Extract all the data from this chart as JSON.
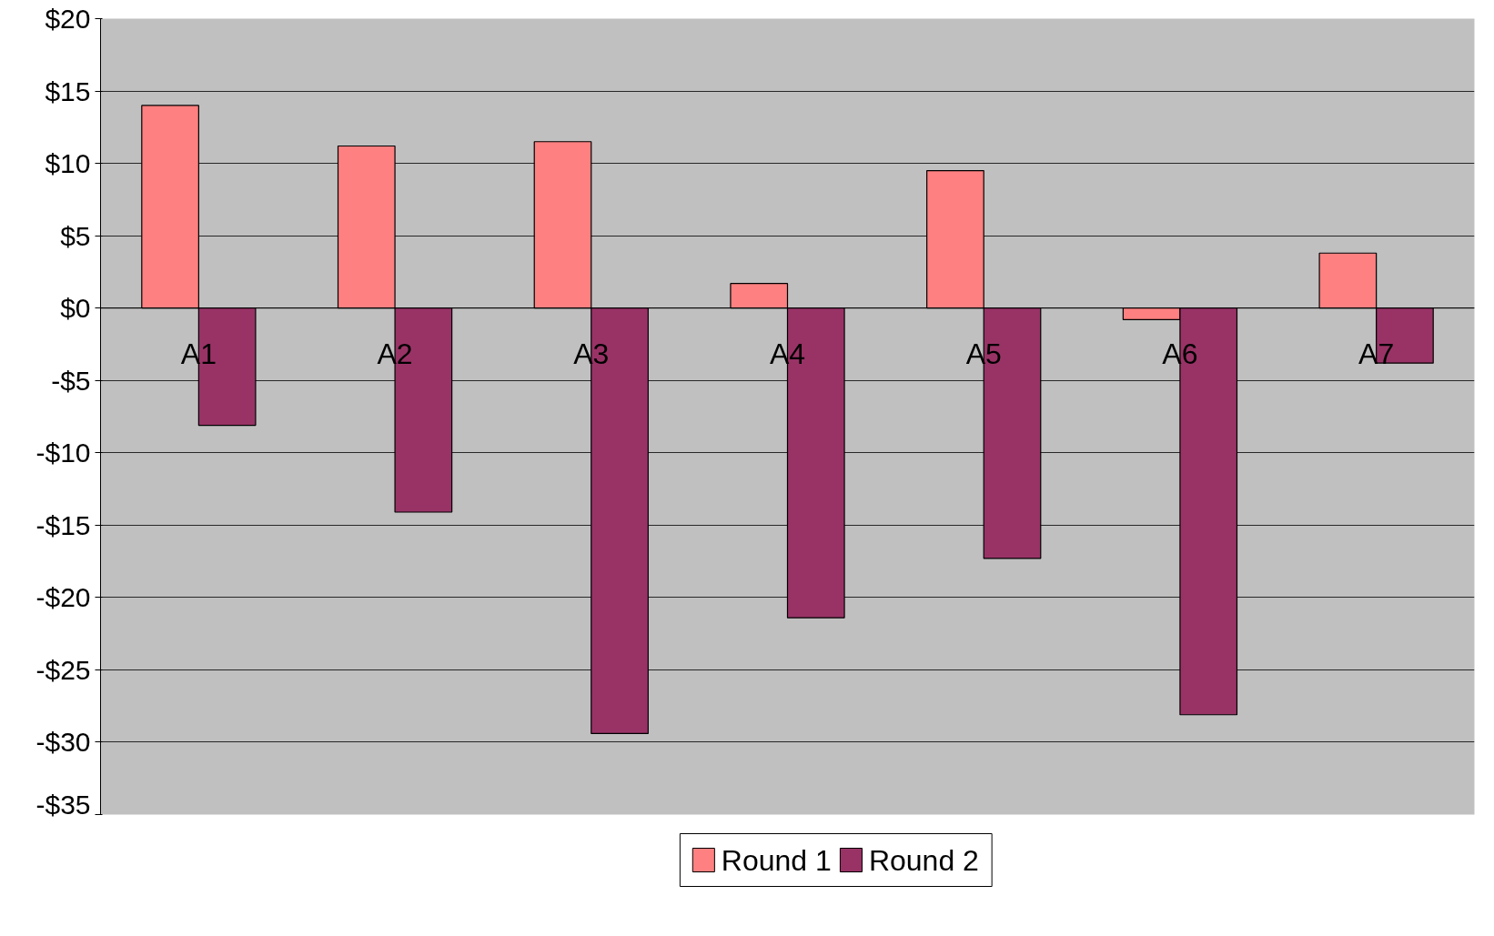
{
  "chart_data": {
    "type": "bar",
    "categories": [
      "A1",
      "A2",
      "A3",
      "A4",
      "A5",
      "A6",
      "A7"
    ],
    "series": [
      {
        "name": "Round 1",
        "color": "#ff8080",
        "values": [
          14.0,
          11.2,
          11.5,
          1.7,
          9.5,
          -0.8,
          3.8
        ]
      },
      {
        "name": "Round 2",
        "color": "#993366",
        "values": [
          -8.1,
          -14.1,
          -29.4,
          -21.4,
          -17.3,
          -28.1,
          -3.8
        ]
      }
    ],
    "ylim": [
      -35,
      20
    ],
    "yticks": [
      {
        "value": 20,
        "label": "$20"
      },
      {
        "value": 15,
        "label": "$15"
      },
      {
        "value": 10,
        "label": "$10"
      },
      {
        "value": 5,
        "label": "$5"
      },
      {
        "value": 0,
        "label": "$0"
      },
      {
        "value": -5,
        "label": "-$5"
      },
      {
        "value": -10,
        "label": "-$10"
      },
      {
        "value": -15,
        "label": "-$15"
      },
      {
        "value": -20,
        "label": "-$20"
      },
      {
        "value": -25,
        "label": "-$25"
      },
      {
        "value": -30,
        "label": "-$30"
      },
      {
        "value": -35,
        "label": "-$35"
      }
    ],
    "grid": "y",
    "legend": "bottom"
  }
}
